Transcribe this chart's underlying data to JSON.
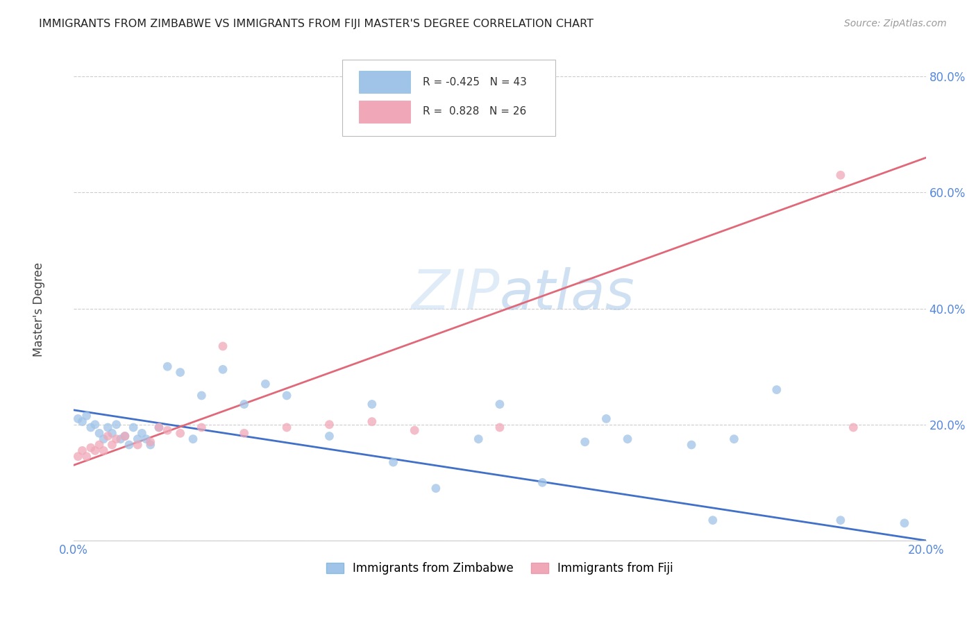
{
  "title": "IMMIGRANTS FROM ZIMBABWE VS IMMIGRANTS FROM FIJI MASTER'S DEGREE CORRELATION CHART",
  "source": "Source: ZipAtlas.com",
  "ylabel": "Master's Degree",
  "xlim": [
    0.0,
    0.2
  ],
  "ylim": [
    0.0,
    0.85
  ],
  "ytick_vals": [
    0.0,
    0.2,
    0.4,
    0.6,
    0.8
  ],
  "ytick_labels": [
    "",
    "20.0%",
    "40.0%",
    "60.0%",
    "80.0%"
  ],
  "xtick_vals": [
    0.0,
    0.04,
    0.08,
    0.12,
    0.16,
    0.2
  ],
  "xtick_labels": [
    "0.0%",
    "",
    "",
    "",
    "",
    "20.0%"
  ],
  "blue_line_color": "#4070c8",
  "pink_line_color": "#e06878",
  "blue_dot_color": "#a0c4e8",
  "pink_dot_color": "#f0a8b8",
  "legend1_color": "#a0c4e8",
  "legend2_color": "#f0a8b8",
  "blue_R": -0.425,
  "blue_N": 43,
  "pink_R": 0.828,
  "pink_N": 26,
  "blue_x": [
    0.001,
    0.002,
    0.003,
    0.004,
    0.005,
    0.006,
    0.007,
    0.008,
    0.009,
    0.01,
    0.011,
    0.012,
    0.013,
    0.014,
    0.015,
    0.016,
    0.017,
    0.018,
    0.02,
    0.022,
    0.025,
    0.028,
    0.03,
    0.035,
    0.04,
    0.045,
    0.05,
    0.06,
    0.07,
    0.075,
    0.085,
    0.095,
    0.1,
    0.11,
    0.12,
    0.125,
    0.13,
    0.145,
    0.15,
    0.155,
    0.165,
    0.18,
    0.195
  ],
  "blue_y": [
    0.21,
    0.205,
    0.215,
    0.195,
    0.2,
    0.185,
    0.175,
    0.195,
    0.185,
    0.2,
    0.175,
    0.18,
    0.165,
    0.195,
    0.175,
    0.185,
    0.175,
    0.165,
    0.195,
    0.3,
    0.29,
    0.175,
    0.25,
    0.295,
    0.235,
    0.27,
    0.25,
    0.18,
    0.235,
    0.135,
    0.09,
    0.175,
    0.235,
    0.1,
    0.17,
    0.21,
    0.175,
    0.165,
    0.035,
    0.175,
    0.26,
    0.035,
    0.03
  ],
  "pink_x": [
    0.001,
    0.002,
    0.003,
    0.004,
    0.005,
    0.006,
    0.007,
    0.008,
    0.009,
    0.01,
    0.012,
    0.015,
    0.018,
    0.02,
    0.022,
    0.025,
    0.03,
    0.035,
    0.04,
    0.05,
    0.06,
    0.07,
    0.08,
    0.1,
    0.18,
    0.183
  ],
  "pink_y": [
    0.145,
    0.155,
    0.145,
    0.16,
    0.155,
    0.165,
    0.155,
    0.18,
    0.165,
    0.175,
    0.18,
    0.165,
    0.17,
    0.195,
    0.19,
    0.185,
    0.195,
    0.335,
    0.185,
    0.195,
    0.2,
    0.205,
    0.19,
    0.195,
    0.63,
    0.195
  ],
  "blue_line_x0": 0.0,
  "blue_line_y0": 0.225,
  "blue_line_x1": 0.2,
  "blue_line_y1": 0.0,
  "pink_line_x0": 0.0,
  "pink_line_y0": 0.13,
  "pink_line_x1": 0.2,
  "pink_line_y1": 0.66
}
